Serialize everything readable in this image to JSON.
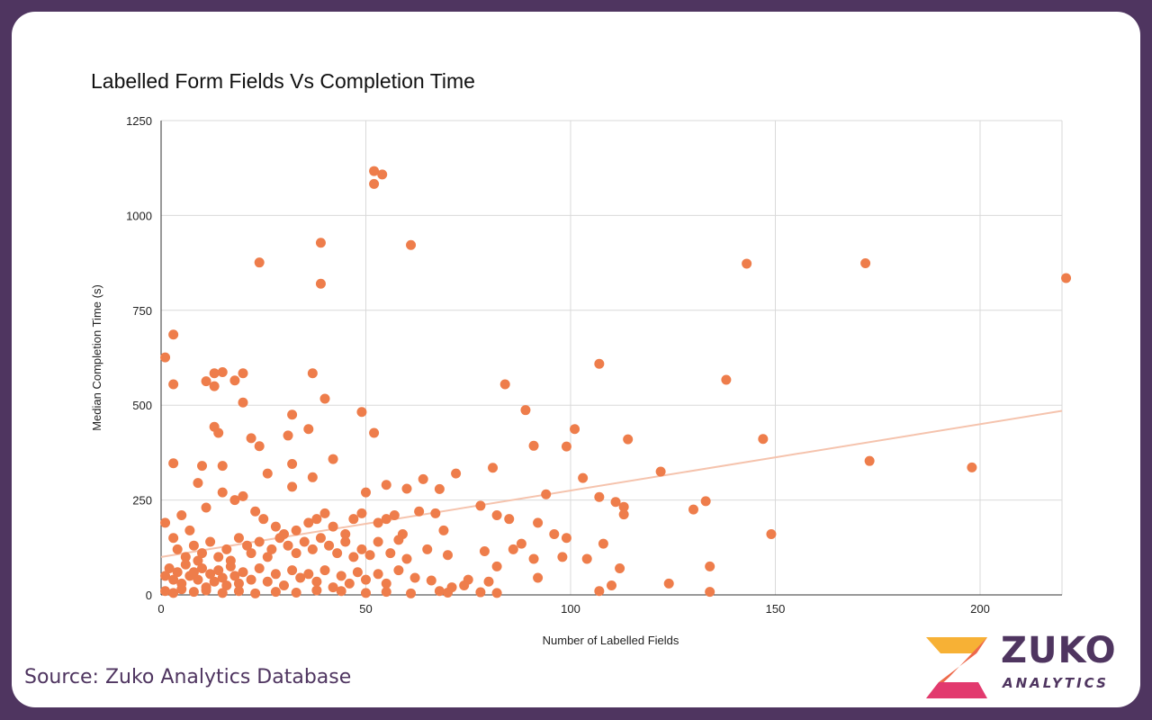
{
  "chart_data": {
    "type": "scatter",
    "title": "Labelled Form Fields Vs Completion Time",
    "xlabel": "Number of Labelled Fields",
    "ylabel": "Median Completion Time (s)",
    "xlim": [
      0,
      220
    ],
    "ylim": [
      0,
      1250
    ],
    "xticks": [
      0,
      50,
      100,
      150,
      200
    ],
    "yticks": [
      0,
      250,
      500,
      750,
      1000,
      1250
    ],
    "grid": true,
    "legend": "none",
    "point_color": "#ee7d4b",
    "trendline": {
      "x": [
        0,
        220
      ],
      "y": [
        100,
        485
      ],
      "color": "#f5c3ad"
    },
    "points": [
      [
        52,
        1117
      ],
      [
        54,
        1108
      ],
      [
        52,
        1083
      ],
      [
        39,
        928
      ],
      [
        61,
        922
      ],
      [
        39,
        820
      ],
      [
        24,
        876
      ],
      [
        143,
        873
      ],
      [
        172,
        874
      ],
      [
        221,
        835
      ],
      [
        3,
        686
      ],
      [
        1,
        626
      ],
      [
        3,
        555
      ],
      [
        15,
        587
      ],
      [
        13,
        584
      ],
      [
        20,
        584
      ],
      [
        37,
        584
      ],
      [
        11,
        563
      ],
      [
        18,
        565
      ],
      [
        13,
        550
      ],
      [
        107,
        609
      ],
      [
        138,
        567
      ],
      [
        84,
        555
      ],
      [
        40,
        517
      ],
      [
        20,
        507
      ],
      [
        89,
        487
      ],
      [
        49,
        482
      ],
      [
        32,
        475
      ],
      [
        13,
        443
      ],
      [
        14,
        427
      ],
      [
        22,
        413
      ],
      [
        31,
        420
      ],
      [
        52,
        427
      ],
      [
        36,
        437
      ],
      [
        24,
        392
      ],
      [
        101,
        437
      ],
      [
        114,
        410
      ],
      [
        147,
        411
      ],
      [
        91,
        393
      ],
      [
        99,
        391
      ],
      [
        3,
        347
      ],
      [
        15,
        340
      ],
      [
        10,
        340
      ],
      [
        26,
        320
      ],
      [
        32,
        345
      ],
      [
        42,
        358
      ],
      [
        72,
        320
      ],
      [
        81,
        335
      ],
      [
        103,
        308
      ],
      [
        122,
        325
      ],
      [
        173,
        353
      ],
      [
        198,
        336
      ],
      [
        64,
        305
      ],
      [
        9,
        295
      ],
      [
        32,
        285
      ],
      [
        37,
        310
      ],
      [
        55,
        290
      ],
      [
        60,
        280
      ],
      [
        68,
        279
      ],
      [
        50,
        270
      ],
      [
        94,
        265
      ],
      [
        107,
        258
      ],
      [
        111,
        245
      ],
      [
        133,
        247
      ],
      [
        113,
        232
      ],
      [
        130,
        225
      ],
      [
        113,
        212
      ],
      [
        149,
        160
      ],
      [
        1,
        190
      ],
      [
        3,
        150
      ],
      [
        7,
        170
      ],
      [
        5,
        210
      ],
      [
        11,
        230
      ],
      [
        15,
        270
      ],
      [
        18,
        250
      ],
      [
        20,
        260
      ],
      [
        23,
        220
      ],
      [
        25,
        200
      ],
      [
        28,
        180
      ],
      [
        30,
        160
      ],
      [
        33,
        170
      ],
      [
        36,
        190
      ],
      [
        38,
        200
      ],
      [
        40,
        215
      ],
      [
        42,
        180
      ],
      [
        45,
        160
      ],
      [
        47,
        200
      ],
      [
        49,
        215
      ],
      [
        53,
        190
      ],
      [
        55,
        200
      ],
      [
        57,
        210
      ],
      [
        59,
        160
      ],
      [
        63,
        220
      ],
      [
        67,
        215
      ],
      [
        69,
        170
      ],
      [
        78,
        235
      ],
      [
        82,
        210
      ],
      [
        85,
        200
      ],
      [
        88,
        135
      ],
      [
        92,
        190
      ],
      [
        96,
        160
      ],
      [
        99,
        150
      ],
      [
        108,
        135
      ],
      [
        112,
        70
      ],
      [
        4,
        120
      ],
      [
        6,
        100
      ],
      [
        8,
        130
      ],
      [
        9,
        90
      ],
      [
        10,
        110
      ],
      [
        12,
        140
      ],
      [
        14,
        100
      ],
      [
        16,
        120
      ],
      [
        17,
        90
      ],
      [
        19,
        150
      ],
      [
        21,
        130
      ],
      [
        22,
        110
      ],
      [
        24,
        140
      ],
      [
        26,
        100
      ],
      [
        27,
        120
      ],
      [
        29,
        150
      ],
      [
        31,
        130
      ],
      [
        33,
        110
      ],
      [
        35,
        140
      ],
      [
        37,
        120
      ],
      [
        39,
        150
      ],
      [
        41,
        130
      ],
      [
        43,
        110
      ],
      [
        45,
        140
      ],
      [
        47,
        100
      ],
      [
        49,
        120
      ],
      [
        51,
        105
      ],
      [
        53,
        140
      ],
      [
        56,
        110
      ],
      [
        58,
        145
      ],
      [
        60,
        95
      ],
      [
        65,
        120
      ],
      [
        70,
        105
      ],
      [
        75,
        40
      ],
      [
        79,
        115
      ],
      [
        82,
        75
      ],
      [
        86,
        120
      ],
      [
        91,
        95
      ],
      [
        98,
        100
      ],
      [
        104,
        95
      ],
      [
        1,
        50
      ],
      [
        2,
        70
      ],
      [
        3,
        40
      ],
      [
        4,
        60
      ],
      [
        5,
        30
      ],
      [
        6,
        80
      ],
      [
        7,
        50
      ],
      [
        8,
        60
      ],
      [
        9,
        40
      ],
      [
        10,
        70
      ],
      [
        11,
        20
      ],
      [
        12,
        55
      ],
      [
        13,
        35
      ],
      [
        14,
        65
      ],
      [
        15,
        45
      ],
      [
        16,
        25
      ],
      [
        17,
        75
      ],
      [
        18,
        50
      ],
      [
        19,
        30
      ],
      [
        20,
        60
      ],
      [
        22,
        40
      ],
      [
        24,
        70
      ],
      [
        26,
        35
      ],
      [
        28,
        55
      ],
      [
        30,
        25
      ],
      [
        32,
        65
      ],
      [
        34,
        45
      ],
      [
        36,
        55
      ],
      [
        38,
        35
      ],
      [
        40,
        65
      ],
      [
        42,
        20
      ],
      [
        44,
        50
      ],
      [
        46,
        30
      ],
      [
        48,
        60
      ],
      [
        50,
        40
      ],
      [
        53,
        55
      ],
      [
        55,
        30
      ],
      [
        58,
        65
      ],
      [
        62,
        45
      ],
      [
        66,
        38
      ],
      [
        71,
        20
      ],
      [
        74,
        25
      ],
      [
        80,
        35
      ],
      [
        92,
        45
      ],
      [
        1,
        10
      ],
      [
        3,
        5
      ],
      [
        5,
        15
      ],
      [
        8,
        8
      ],
      [
        11,
        12
      ],
      [
        15,
        5
      ],
      [
        19,
        10
      ],
      [
        23,
        4
      ],
      [
        28,
        8
      ],
      [
        33,
        6
      ],
      [
        38,
        12
      ],
      [
        44,
        10
      ],
      [
        50,
        5
      ],
      [
        55,
        8
      ],
      [
        61,
        4
      ],
      [
        68,
        10
      ],
      [
        70,
        6
      ],
      [
        78,
        7
      ],
      [
        82,
        5
      ],
      [
        107,
        10
      ],
      [
        110,
        25
      ],
      [
        124,
        30
      ],
      [
        134,
        75
      ],
      [
        134,
        8
      ]
    ]
  },
  "source_text": "Source: Zuko Analytics Database",
  "logo": {
    "word": "ZUKO",
    "sub": "ANALYTICS"
  }
}
